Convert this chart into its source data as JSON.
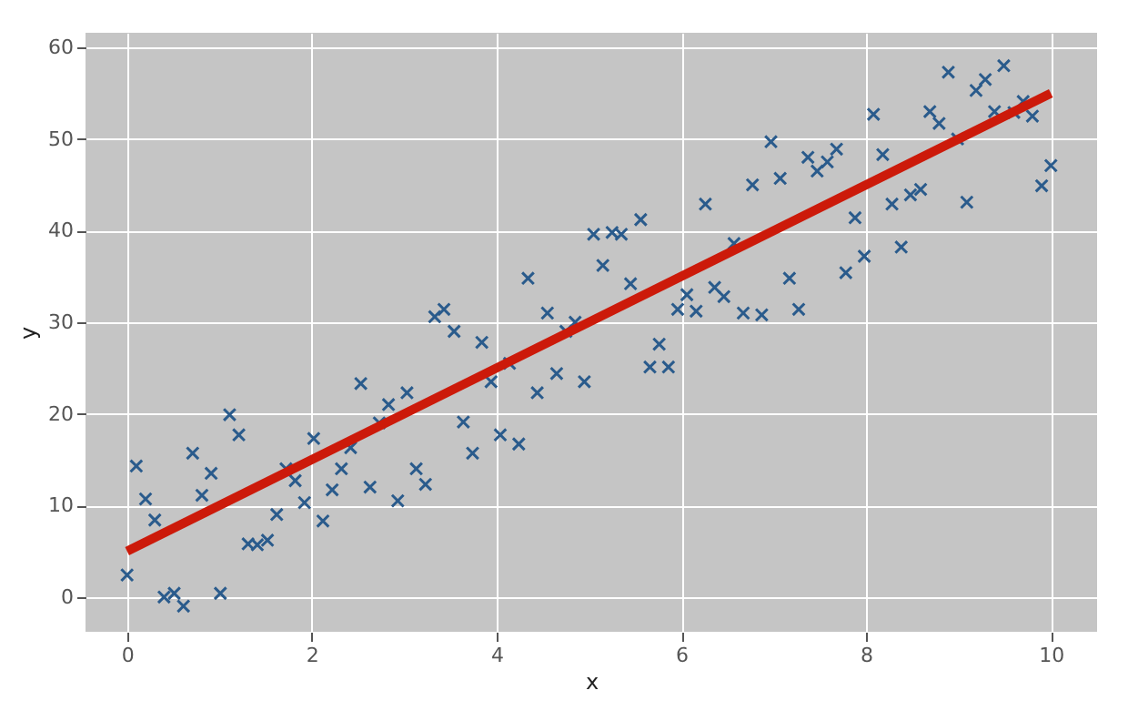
{
  "chart_data": {
    "type": "scatter",
    "xlabel": "x",
    "ylabel": "y",
    "xlim": [
      -0.45,
      10.5
    ],
    "ylim": [
      -3.8,
      61.6
    ],
    "xticks": [
      0,
      2,
      4,
      6,
      8,
      10
    ],
    "yticks": [
      0,
      10,
      20,
      30,
      40,
      50,
      60
    ],
    "grid": true,
    "series": [
      {
        "color": "#2a5b8c",
        "marker": "cross",
        "x": [
          0,
          0.1,
          0.2,
          0.3,
          0.4,
          0.51,
          0.61,
          0.71,
          0.81,
          0.91,
          1.01,
          1.11,
          1.21,
          1.31,
          1.41,
          1.52,
          1.62,
          1.72,
          1.82,
          1.92,
          2.02,
          2.12,
          2.22,
          2.32,
          2.42,
          2.53,
          2.63,
          2.73,
          2.83,
          2.93,
          3.03,
          3.13,
          3.23,
          3.33,
          3.43,
          3.54,
          3.64,
          3.74,
          3.84,
          3.94,
          4.04,
          4.14,
          4.24,
          4.34,
          4.44,
          4.55,
          4.65,
          4.75,
          4.85,
          4.95,
          5.05,
          5.15,
          5.25,
          5.35,
          5.45,
          5.56,
          5.66,
          5.76,
          5.86,
          5.96,
          6.06,
          6.16,
          6.26,
          6.36,
          6.46,
          6.57,
          6.67,
          6.77,
          6.87,
          6.97,
          7.07,
          7.17,
          7.27,
          7.37,
          7.47,
          7.58,
          7.68,
          7.78,
          7.88,
          7.98,
          8.08,
          8.18,
          8.28,
          8.38,
          8.48,
          8.59,
          8.69,
          8.79,
          8.89,
          8.99,
          9.09,
          9.19,
          9.29,
          9.39,
          9.49,
          9.6,
          9.7,
          9.8,
          9.9,
          10.0
        ],
        "values": [
          2.4,
          14.3,
          10.7,
          8.4,
          0,
          0.4,
          -1,
          15.7,
          11.1,
          13.5,
          0.4,
          19.9,
          17.7,
          5.8,
          5.7,
          6.2,
          9,
          14,
          12.7,
          10.3,
          17.3,
          8.3,
          11.7,
          14,
          16.3,
          23.3,
          12,
          19,
          21,
          10.5,
          22.3,
          14,
          12.3,
          30.6,
          31.4,
          29,
          19.1,
          15.7,
          27.8,
          23.5,
          17.7,
          25.5,
          16.7,
          34.8,
          22.3,
          31,
          24.4,
          29,
          30,
          23.5,
          39.6,
          36.2,
          39.8,
          39.6,
          34.2,
          41.2,
          25.1,
          27.6,
          25.1,
          31.4,
          33,
          31.2,
          42.9,
          33.8,
          32.8,
          38.6,
          31,
          45,
          30.8,
          49.7,
          45.7,
          34.8,
          31.4,
          48,
          46.5,
          47.5,
          48.9,
          35.4,
          41.4,
          37.2,
          52.7,
          48.3,
          42.9,
          38.2,
          43.9,
          44.5,
          53,
          51.7,
          57.3,
          50,
          43.1,
          55.3,
          56.5,
          53,
          58,
          52.9,
          54.1,
          52.5,
          44.9,
          47.1
        ]
      },
      {
        "type": "line",
        "color": "#cc1a0a",
        "marker": "none",
        "line_style": "solid",
        "x": [
          0,
          10
        ],
        "values": [
          5,
          55
        ]
      }
    ]
  }
}
